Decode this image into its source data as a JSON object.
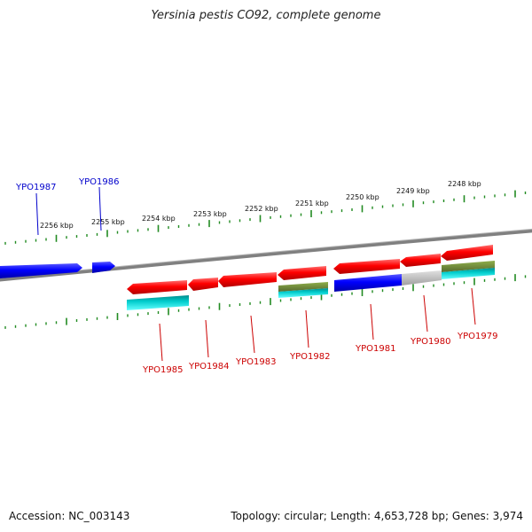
{
  "title": "Yersinia pestis CO92, complete genome",
  "footer": {
    "accession": "Accession: NC_003143",
    "summary": "Topology: circular; Length: 4,653,728 bp; Genes: 3,974"
  },
  "colors": {
    "forward_gene": "#0000ff",
    "reverse_gene": "#ff0000",
    "tick": "#228b22",
    "backbone": "#808080",
    "cyan_feature": "#00cccc",
    "olive_feature": "#6b8e23",
    "grey_feature": "#c0c0c0"
  },
  "scale_labels": [
    "2256 kbp",
    "2255 kbp",
    "2254 kbp",
    "2253 kbp",
    "2252 kbp",
    "2251 kbp",
    "2250 kbp",
    "2249 kbp",
    "2248 kbp"
  ],
  "forward_genes": [
    "YPO1987",
    "YPO1986"
  ],
  "reverse_genes": [
    "YPO1985",
    "YPO1984",
    "YPO1983",
    "YPO1982",
    "YPO1981",
    "YPO1980",
    "YPO1979"
  ]
}
